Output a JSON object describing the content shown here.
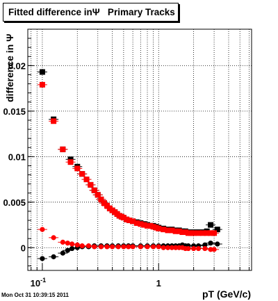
{
  "title_box": {
    "label": "Fitted difference inΨ   Primary Tracks"
  },
  "timestamp": "Mon Oct 31 10:39:15 2011",
  "colors": {
    "series_black": "#000000",
    "series_red": "#ff0000",
    "grid": "#000000"
  },
  "chart_data": {
    "type": "scatter",
    "title": "Fitted difference inΨ   Primary Tracks",
    "xlabel": "pT (GeV/c)",
    "ylabel": "difference in Ψ",
    "xscale": "log",
    "xlim": [
      0.075,
      6.3
    ],
    "ylim": [
      -0.0025,
      0.024
    ],
    "grid": true,
    "y_ticks": [
      {
        "value": 0,
        "label": "0"
      },
      {
        "value": 0.005,
        "label": "0.005"
      },
      {
        "value": 0.01,
        "label": "0.01"
      },
      {
        "value": 0.015,
        "label": "0.015"
      },
      {
        "value": 0.02,
        "label": "0.02"
      }
    ],
    "x_ticks": [
      {
        "value": 0.1,
        "label": "10",
        "sup": "-1"
      },
      {
        "value": 1,
        "label": "1",
        "sup": ""
      }
    ],
    "series": [
      {
        "marker": "square",
        "color": "#000000",
        "points": [
          [
            0.1,
            0.0193
          ],
          [
            0.125,
            0.0141
          ],
          [
            0.15,
            0.0108
          ],
          [
            0.175,
            0.0097
          ],
          [
            0.2,
            0.0089
          ],
          [
            0.22,
            0.0081
          ],
          [
            0.24,
            0.0075
          ],
          [
            0.26,
            0.0069
          ],
          [
            0.28,
            0.0063
          ],
          [
            0.3,
            0.0058
          ],
          [
            0.32,
            0.0053
          ],
          [
            0.34,
            0.0049
          ],
          [
            0.36,
            0.0046
          ],
          [
            0.38,
            0.0043
          ],
          [
            0.4,
            0.0041
          ],
          [
            0.42,
            0.0039
          ],
          [
            0.44,
            0.0037
          ],
          [
            0.46,
            0.0035
          ],
          [
            0.48,
            0.0034
          ],
          [
            0.5,
            0.0033
          ],
          [
            0.53,
            0.0031
          ],
          [
            0.56,
            0.003
          ],
          [
            0.6,
            0.0029
          ],
          [
            0.65,
            0.0028
          ],
          [
            0.7,
            0.0027
          ],
          [
            0.75,
            0.0026
          ],
          [
            0.8,
            0.0025
          ],
          [
            0.85,
            0.0024
          ],
          [
            0.9,
            0.0024
          ],
          [
            0.95,
            0.0023
          ],
          [
            1.0,
            0.0022
          ],
          [
            1.1,
            0.0021
          ],
          [
            1.2,
            0.002
          ],
          [
            1.3,
            0.002
          ],
          [
            1.4,
            0.0019
          ],
          [
            1.5,
            0.0019
          ],
          [
            1.6,
            0.0018
          ],
          [
            1.7,
            0.0018
          ],
          [
            1.8,
            0.0017
          ],
          [
            1.9,
            0.0017
          ],
          [
            2.0,
            0.0017
          ],
          [
            2.2,
            0.0017
          ],
          [
            2.4,
            0.0017
          ],
          [
            2.6,
            0.0018
          ],
          [
            2.8,
            0.0025
          ],
          [
            3.2,
            0.002
          ]
        ]
      },
      {
        "marker": "square",
        "color": "#ff0000",
        "points": [
          [
            0.1,
            0.0179
          ],
          [
            0.125,
            0.0139
          ],
          [
            0.15,
            0.0108
          ],
          [
            0.175,
            0.0094
          ],
          [
            0.2,
            0.0087
          ],
          [
            0.22,
            0.0081
          ],
          [
            0.24,
            0.0075
          ],
          [
            0.26,
            0.0069
          ],
          [
            0.28,
            0.0063
          ],
          [
            0.3,
            0.0058
          ],
          [
            0.32,
            0.0053
          ],
          [
            0.34,
            0.0049
          ],
          [
            0.36,
            0.0046
          ],
          [
            0.38,
            0.0043
          ],
          [
            0.4,
            0.0041
          ],
          [
            0.42,
            0.0039
          ],
          [
            0.44,
            0.0037
          ],
          [
            0.46,
            0.0035
          ],
          [
            0.48,
            0.0034
          ],
          [
            0.5,
            0.0033
          ],
          [
            0.53,
            0.0031
          ],
          [
            0.56,
            0.003
          ],
          [
            0.6,
            0.0029
          ],
          [
            0.65,
            0.0027
          ],
          [
            0.7,
            0.0026
          ],
          [
            0.75,
            0.0025
          ],
          [
            0.8,
            0.0024
          ],
          [
            0.85,
            0.0024
          ],
          [
            0.9,
            0.0023
          ],
          [
            0.95,
            0.0022
          ],
          [
            1.0,
            0.0021
          ],
          [
            1.1,
            0.002
          ],
          [
            1.2,
            0.0019
          ],
          [
            1.3,
            0.0019
          ],
          [
            1.4,
            0.0018
          ],
          [
            1.5,
            0.0018
          ],
          [
            1.6,
            0.0017
          ],
          [
            1.7,
            0.0017
          ],
          [
            1.8,
            0.0016
          ],
          [
            1.9,
            0.0016
          ],
          [
            2.0,
            0.0016
          ],
          [
            2.2,
            0.0016
          ],
          [
            2.4,
            0.0016
          ],
          [
            2.6,
            0.0016
          ],
          [
            2.8,
            0.0016
          ],
          [
            3.0,
            0.0016
          ]
        ]
      },
      {
        "marker": "circle",
        "color": "#000000",
        "points": [
          [
            0.1,
            -0.0012
          ],
          [
            0.125,
            -0.001
          ],
          [
            0.15,
            -0.0006
          ],
          [
            0.165,
            -0.0003
          ],
          [
            0.18,
            -0.0001
          ],
          [
            0.2,
            0.0
          ],
          [
            0.22,
            0.0001
          ],
          [
            0.25,
            0.0001
          ],
          [
            0.28,
            0.0002
          ],
          [
            0.32,
            0.0002
          ],
          [
            0.36,
            0.0002
          ],
          [
            0.4,
            0.0002
          ],
          [
            0.45,
            0.0002
          ],
          [
            0.5,
            0.0002
          ],
          [
            0.55,
            0.0002
          ],
          [
            0.6,
            0.0002
          ],
          [
            0.7,
            0.0002
          ],
          [
            0.8,
            0.0002
          ],
          [
            0.9,
            0.0002
          ],
          [
            1.0,
            0.0002
          ],
          [
            1.1,
            0.0002
          ],
          [
            1.2,
            0.0002
          ],
          [
            1.3,
            0.0002
          ],
          [
            1.4,
            0.0002
          ],
          [
            1.5,
            0.0002
          ],
          [
            1.6,
            0.0003
          ],
          [
            1.7,
            0.0002
          ],
          [
            1.8,
            0.0002
          ],
          [
            2.0,
            0.0002
          ],
          [
            2.2,
            0.0002
          ],
          [
            2.5,
            0.0003
          ],
          [
            2.8,
            0.0005
          ],
          [
            3.2,
            0.0004
          ]
        ]
      },
      {
        "marker": "circle",
        "color": "#ff0000",
        "points": [
          [
            0.1,
            0.002
          ],
          [
            0.125,
            0.0011
          ],
          [
            0.15,
            0.0006
          ],
          [
            0.165,
            0.0005
          ],
          [
            0.18,
            0.0004
          ],
          [
            0.2,
            0.0003
          ],
          [
            0.22,
            0.0002
          ],
          [
            0.25,
            0.0002
          ],
          [
            0.28,
            0.0001
          ],
          [
            0.32,
            0.0001
          ],
          [
            0.36,
            0.0001
          ],
          [
            0.4,
            0.0001
          ],
          [
            0.45,
            0.0001
          ],
          [
            0.5,
            0.0001
          ],
          [
            0.55,
            0.0001
          ],
          [
            0.6,
            0.0001
          ],
          [
            0.7,
            0.0001
          ],
          [
            0.8,
            0.0001
          ],
          [
            0.9,
            0.0001
          ],
          [
            1.0,
            0.0001
          ],
          [
            1.1,
            0.0
          ],
          [
            1.2,
            0.0
          ],
          [
            1.3,
            0.0
          ],
          [
            1.4,
            0.0
          ],
          [
            1.5,
            0.0
          ],
          [
            1.6,
            0.0
          ],
          [
            1.7,
            -0.0001
          ],
          [
            1.8,
            -0.0001
          ],
          [
            2.0,
            -0.0001
          ],
          [
            2.2,
            -0.0001
          ],
          [
            2.5,
            -0.0001
          ],
          [
            2.8,
            -0.0002
          ],
          [
            3.0,
            -0.0002
          ]
        ]
      }
    ]
  }
}
